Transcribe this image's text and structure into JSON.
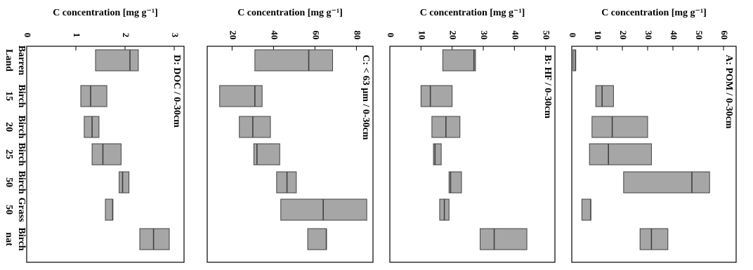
{
  "categories_label": "",
  "chart_data": [
    {
      "type": "bar",
      "title": "A: POM / 0-30cm",
      "xlabel": "C concentration [mg g⁻¹]",
      "ylabel": "",
      "categories": [
        "Barren Land",
        "Birch 15",
        "Birch 20",
        "Birch 25",
        "Birch 50",
        "Grass 50",
        "Birch nat"
      ],
      "ticks": [
        0,
        10,
        20,
        30,
        40,
        50,
        60
      ],
      "xlim": [
        0,
        65
      ],
      "boxes": [
        {
          "low": 0.5,
          "median": 1.5,
          "high": 1.5
        },
        {
          "low": 9.5,
          "median": 12,
          "high": 16.5
        },
        {
          "low": 8,
          "median": 16,
          "high": 30
        },
        {
          "low": 7,
          "median": 14.5,
          "high": 31.5
        },
        {
          "low": 20.5,
          "median": 47.5,
          "high": 54.5
        },
        {
          "low": 4,
          "median": 7.5,
          "high": 7.5
        },
        {
          "low": 27,
          "median": 31.5,
          "high": 38
        }
      ]
    },
    {
      "type": "bar",
      "title": "B: HF / 0-30cm",
      "xlabel": "C concentration [mg g⁻¹]",
      "ylabel": "",
      "categories": [
        "Barren Land",
        "Birch 15",
        "Birch 20",
        "Birch 25",
        "Birch 50",
        "Grass 50",
        "Birch nat"
      ],
      "ticks": [
        0,
        10,
        20,
        30,
        40,
        50
      ],
      "xlim": [
        0,
        53
      ],
      "boxes": [
        {
          "low": 17,
          "median": 27,
          "high": 27.5
        },
        {
          "low": 10,
          "median": 13,
          "high": 20
        },
        {
          "low": 13.5,
          "median": 18,
          "high": 22.5
        },
        {
          "low": 14,
          "median": 14.5,
          "high": 16.5
        },
        {
          "low": 19,
          "median": 19.5,
          "high": 23
        },
        {
          "low": 16,
          "median": 17.5,
          "high": 19
        },
        {
          "low": 29,
          "median": 33.5,
          "high": 44
        }
      ]
    },
    {
      "type": "bar",
      "title": "C: < 63 µm / 0-30cm",
      "xlabel": "C concentration [mg g⁻¹]",
      "ylabel": "",
      "categories": [
        "Barren Land",
        "Birch 15",
        "Birch 20",
        "Birch 25",
        "Birch 50",
        "Grass 50",
        "Birch nat"
      ],
      "ticks": [
        20,
        40,
        60,
        80
      ],
      "xlim": [
        8,
        88
      ],
      "boxes": [
        {
          "low": 31,
          "median": 57,
          "high": 68.5
        },
        {
          "low": 14,
          "median": 31,
          "high": 34.5
        },
        {
          "low": 23.5,
          "median": 30,
          "high": 38.5
        },
        {
          "low": 30.5,
          "median": 32,
          "high": 43
        },
        {
          "low": 41.5,
          "median": 46.5,
          "high": 51
        },
        {
          "low": 43.5,
          "median": 64,
          "high": 85
        },
        {
          "low": 56.5,
          "median": 65.5,
          "high": 65.5
        }
      ]
    },
    {
      "type": "bar",
      "title": "D: DOC / 0-30cm",
      "xlabel": "C concentration [mg g⁻¹]",
      "ylabel": "",
      "categories": [
        "Barren Land",
        "Birch 15",
        "Birch 20",
        "Birch 25",
        "Birch 50",
        "Grass 50",
        "Birch nat"
      ],
      "ticks": [
        0,
        1,
        2,
        3
      ],
      "xlim": [
        0,
        3.2
      ],
      "boxes": [
        {
          "low": 1.4,
          "median": 2.1,
          "high": 2.27
        },
        {
          "low": 1.1,
          "median": 1.3,
          "high": 1.63
        },
        {
          "low": 1.17,
          "median": 1.33,
          "high": 1.47
        },
        {
          "low": 1.33,
          "median": 1.55,
          "high": 1.92
        },
        {
          "low": 1.88,
          "median": 1.95,
          "high": 2.08
        },
        {
          "low": 1.6,
          "median": 1.75,
          "high": 1.75
        },
        {
          "low": 2.3,
          "median": 2.58,
          "high": 2.9
        }
      ]
    }
  ],
  "category_labels": [
    [
      "Barren",
      "Land"
    ],
    [
      "Birch",
      "15"
    ],
    [
      "Birch",
      "20"
    ],
    [
      "Birch",
      "25"
    ],
    [
      "Birch",
      "50"
    ],
    [
      "Grass",
      "50"
    ],
    [
      "Birch",
      "nat"
    ]
  ],
  "colors": {
    "box_fill": "#a6a6a6",
    "box_stroke": "#404040",
    "frame": "#000000"
  }
}
